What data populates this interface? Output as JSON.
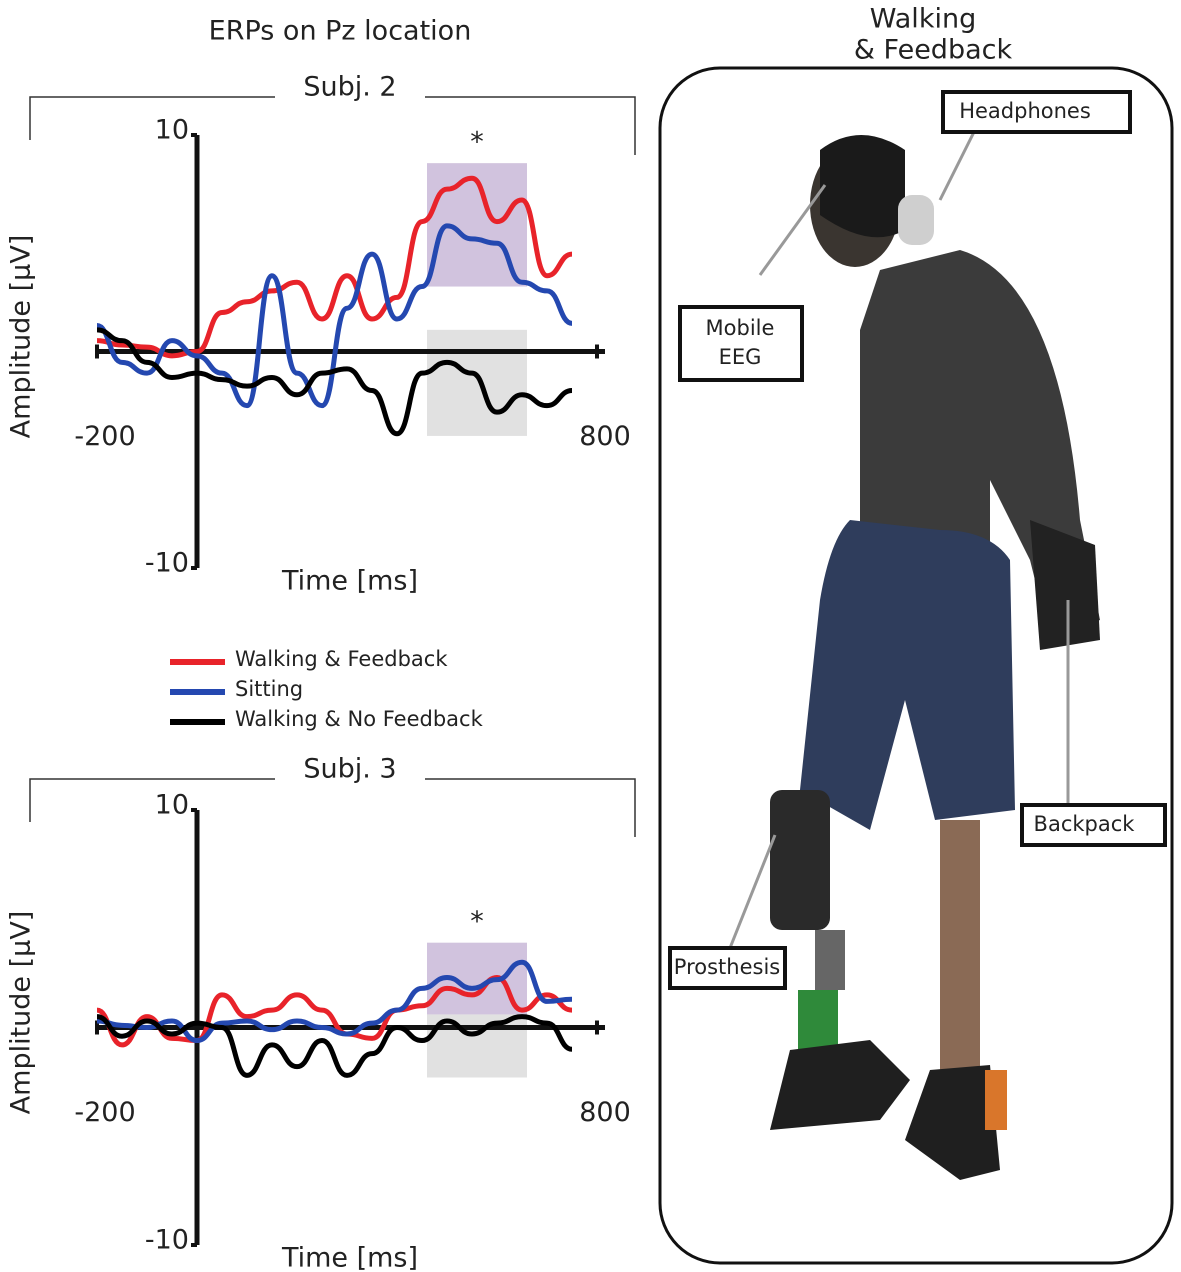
{
  "title": "ERPs on Pz location",
  "chart_data": [
    {
      "type": "line",
      "title": "Subj. 2",
      "xlabel": "Time [ms]",
      "ylabel": "Amplitude [µV]",
      "x": [
        -200,
        -150,
        -100,
        -50,
        0,
        50,
        100,
        150,
        200,
        250,
        300,
        350,
        400,
        450,
        500,
        550,
        600,
        650,
        700,
        750
      ],
      "series": [
        {
          "name": "Walking & Feedback",
          "color": "#e8232a",
          "values": [
            0.5,
            0.3,
            0.2,
            -0.2,
            0,
            1.8,
            2.3,
            2.8,
            3.2,
            1.5,
            3.5,
            1.5,
            2.5,
            6.0,
            7.5,
            8.0,
            6.0,
            7.0,
            3.5,
            4.5
          ]
        },
        {
          "name": "Sitting",
          "color": "#2448b0",
          "values": [
            1.2,
            -0.5,
            -1.0,
            0.5,
            -0.2,
            -1.0,
            -2.5,
            3.5,
            -1.0,
            -2.5,
            2.0,
            4.5,
            1.5,
            3.0,
            5.8,
            5.2,
            5.0,
            3.2,
            2.8,
            1.3
          ]
        },
        {
          "name": "Walking & No Feedback",
          "color": "#000000",
          "values": [
            1.0,
            0.5,
            -0.5,
            -1.2,
            -1.0,
            -1.3,
            -1.6,
            -1.2,
            -2.0,
            -1.0,
            -0.8,
            -1.8,
            -3.8,
            -1.0,
            -0.5,
            -1.0,
            -2.8,
            -2.0,
            -2.5,
            -1.8
          ]
        }
      ],
      "regions": [
        {
          "xlim": [
            460,
            660
          ],
          "ylim": [
            3,
            8.7
          ],
          "color": "#c9b8d8"
        },
        {
          "xlim": [
            460,
            660
          ],
          "ylim": [
            -3.9,
            1
          ],
          "color": "#dcdcdc"
        }
      ],
      "annotation": "*",
      "xlim": [
        -200,
        800
      ],
      "xticks": [
        -200,
        800
      ],
      "ylim": [
        -10,
        10
      ],
      "yticks": [
        -10,
        10
      ]
    },
    {
      "type": "line",
      "title": "Subj. 3",
      "xlabel": "Time [ms]",
      "ylabel": "Amplitude [µV]",
      "x": [
        -200,
        -150,
        -100,
        -50,
        0,
        50,
        100,
        150,
        200,
        250,
        300,
        350,
        400,
        450,
        500,
        550,
        600,
        650,
        700,
        750
      ],
      "series": [
        {
          "color": "#e8232a",
          "values": [
            0.8,
            -0.8,
            0.5,
            -0.5,
            -0.6,
            1.5,
            0.5,
            0.8,
            1.5,
            0.8,
            -0.3,
            -0.5,
            0.8,
            1.0,
            1.8,
            1.5,
            2.3,
            0.8,
            1.5,
            0.8
          ]
        },
        {
          "color": "#2448b0",
          "values": [
            0.3,
            0.1,
            0,
            0.3,
            -0.6,
            0.2,
            0.3,
            -0.1,
            0.3,
            0,
            -0.3,
            0.2,
            0.8,
            1.8,
            2.3,
            1.8,
            2.2,
            3.0,
            1.2,
            1.3
          ]
        },
        {
          "color": "#000000",
          "values": [
            0.5,
            -0.4,
            0.3,
            -0.3,
            0.2,
            0,
            -2.2,
            -0.8,
            -1.8,
            -0.6,
            -2.2,
            -1.2,
            0,
            -0.6,
            0.3,
            -0.3,
            0.2,
            0.5,
            0.2,
            -1.0
          ]
        }
      ],
      "regions": [
        {
          "xlim": [
            460,
            660
          ],
          "ylim": [
            0.6,
            3.9
          ],
          "color": "#c9b8d8"
        },
        {
          "xlim": [
            460,
            660
          ],
          "ylim": [
            -2.3,
            0.6
          ],
          "color": "#dcdcdc"
        }
      ],
      "annotation": "*",
      "xlim": [
        -200,
        800
      ],
      "xticks": [
        -200,
        800
      ],
      "ylim": [
        -10,
        10
      ],
      "yticks": [
        -10,
        10
      ]
    }
  ],
  "panel": {
    "title": [
      "Walking",
      "& Feedback"
    ],
    "labels": {
      "headphones": "Headphones",
      "eeg": [
        "Mobile",
        "EEG"
      ],
      "backpack": "Backpack",
      "prosthesis": "Prosthesis"
    }
  }
}
